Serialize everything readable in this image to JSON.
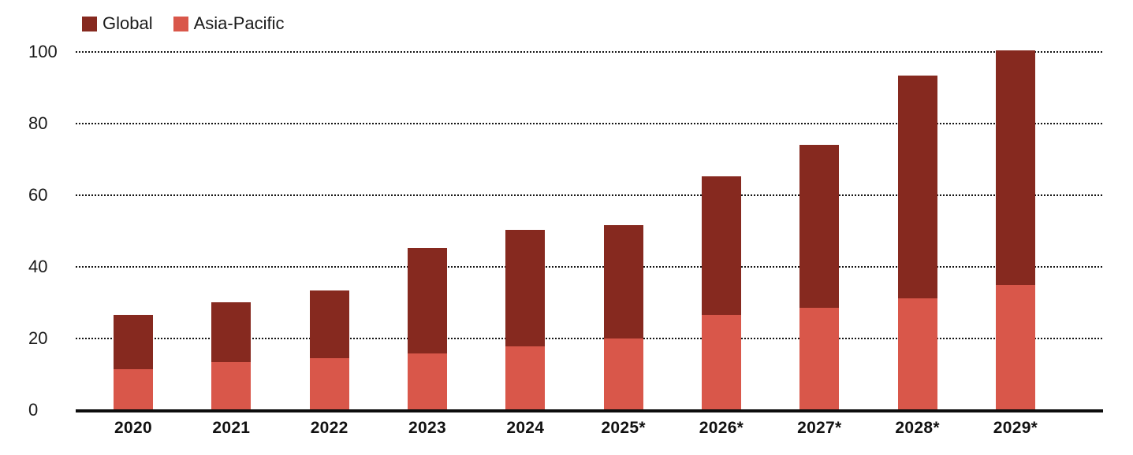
{
  "colors": {
    "global_series": "#86291F",
    "asia_pacific_series": "#D9574A",
    "axis": "#0d0d0d",
    "gridline": "#141414",
    "text": "#1a1a1a"
  },
  "legend": {
    "items": [
      {
        "label": "Global",
        "color": "#86291F"
      },
      {
        "label": "Asia-Pacific",
        "color": "#D9574A"
      }
    ]
  },
  "chart_data": {
    "type": "bar",
    "subtype": "overlaid-stacked-columns",
    "title": "",
    "xlabel": "",
    "ylabel": "",
    "categories": [
      "2020",
      "2021",
      "2022",
      "2023",
      "2024",
      "2025*",
      "2026*",
      "2027*",
      "2028*",
      "2029*"
    ],
    "series": [
      {
        "name": "Global",
        "color": "#86291F",
        "values": [
          26.5,
          30.2,
          33.5,
          45.3,
          50.4,
          51.7,
          65.3,
          74.0,
          93.4,
          100.4
        ]
      },
      {
        "name": "Asia-Pacific",
        "color": "#D9574A",
        "values": [
          11.5,
          13.3,
          14.6,
          15.8,
          17.7,
          20.1,
          26.6,
          28.5,
          31.2,
          35.0
        ]
      }
    ],
    "ylim": [
      0,
      100
    ],
    "yticks": [
      0,
      20,
      40,
      60,
      80,
      100
    ],
    "grid": "horizontal-dotted",
    "legend_position": "top-left",
    "notes": "Asia-Pacific bars are drawn in front of (within) the Global bars; categories with * are forecast years"
  }
}
